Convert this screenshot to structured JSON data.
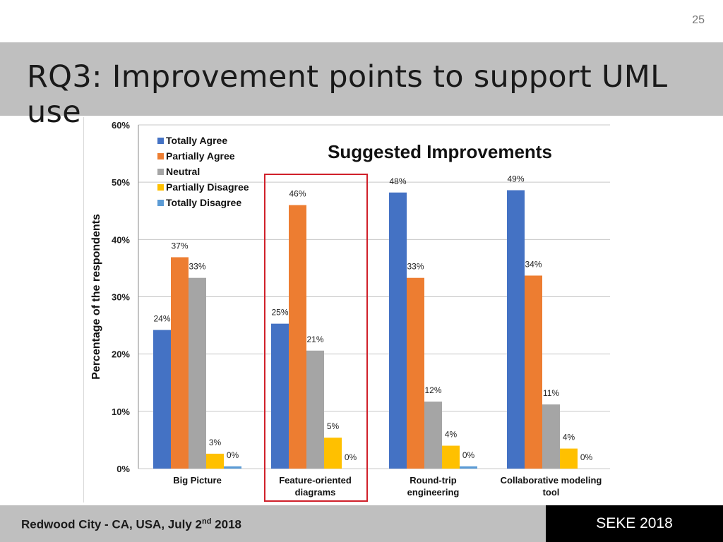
{
  "slide": {
    "number": "25",
    "title": "RQ3: Improvement points to support UML use"
  },
  "footer": {
    "date_prefix": "Redwood City - CA, USA, July 2",
    "date_sup": "nd",
    "date_suffix": " 2018",
    "conference": "SEKE 2018"
  },
  "chart_data": {
    "type": "bar",
    "title": "Suggested Improvements",
    "ylabel": "Percentage of the respondents",
    "xlabel": "",
    "ylim": [
      0,
      60
    ],
    "yticks": [
      0,
      10,
      20,
      30,
      40,
      50,
      60
    ],
    "ytick_labels": [
      "0%",
      "10%",
      "20%",
      "30%",
      "40%",
      "50%",
      "60%"
    ],
    "grid": true,
    "legend_position": "top-left",
    "categories": [
      [
        "Big Picture"
      ],
      [
        "Feature-oriented",
        "diagrams"
      ],
      [
        "Round-trip",
        "engineering"
      ],
      [
        "Collaborative modeling",
        "tool"
      ]
    ],
    "highlighted_category": 1,
    "highlight_color": "#d0202a",
    "series": [
      {
        "name": "Totally Agree",
        "color": "#4472c4",
        "values": [
          24.2,
          25.3,
          48.2,
          48.6
        ],
        "labels": [
          "24%",
          "25%",
          "48%",
          "49%"
        ]
      },
      {
        "name": "Partially Agree",
        "color": "#ed7d31",
        "values": [
          36.9,
          46.0,
          33.3,
          33.7
        ],
        "labels": [
          "37%",
          "46%",
          "33%",
          "34%"
        ]
      },
      {
        "name": "Neutral",
        "color": "#a5a5a5",
        "values": [
          33.3,
          20.6,
          11.7,
          11.2
        ],
        "labels": [
          "33%",
          "21%",
          "12%",
          "11%"
        ]
      },
      {
        "name": "Partially Disagree",
        "color": "#ffc000",
        "values": [
          2.6,
          5.4,
          4.0,
          3.5
        ],
        "labels": [
          "3%",
          "5%",
          "4%",
          "4%"
        ]
      },
      {
        "name": "Totally Disagree",
        "color": "#5b9bd5",
        "values": [
          0.4,
          0.0,
          0.4,
          0.0
        ],
        "labels": [
          "0%",
          "0%",
          "0%",
          "0%"
        ]
      }
    ]
  }
}
